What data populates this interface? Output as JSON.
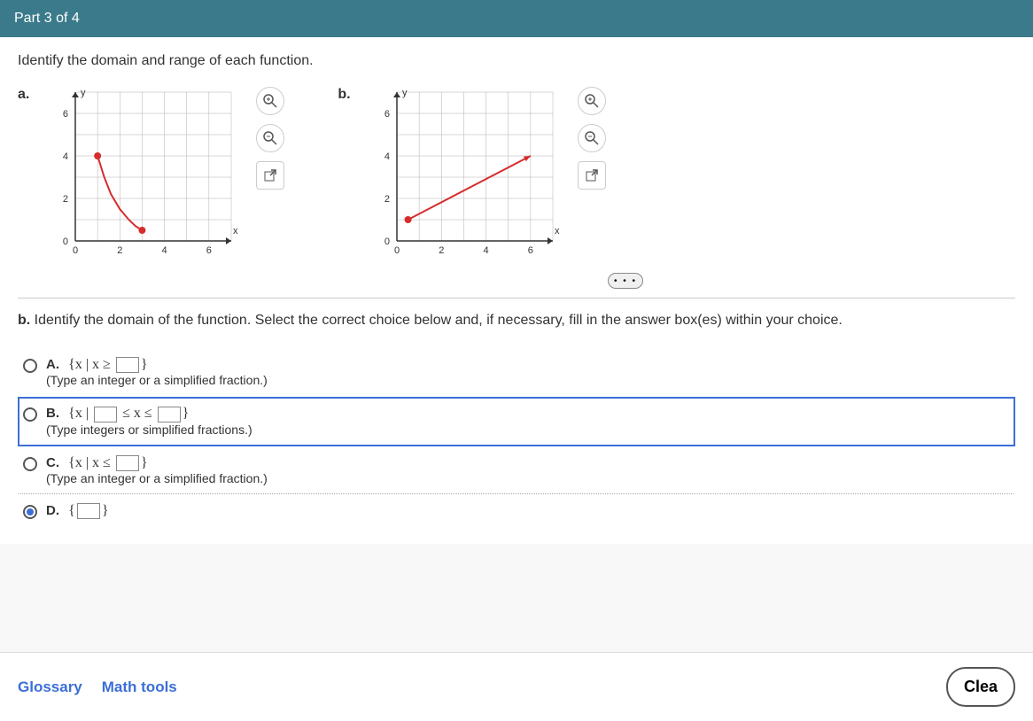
{
  "header": {
    "title": "Part 3 of 4"
  },
  "prompt": "Identify the domain and range of each function.",
  "chart_a": {
    "label": "a.",
    "xlim": [
      0,
      7
    ],
    "ylim": [
      0,
      7
    ],
    "xticks": [
      0,
      2,
      4,
      6
    ],
    "yticks": [
      0,
      2,
      4,
      6
    ],
    "xlabel": "x",
    "ylabel": "y",
    "grid_color": "#b0b0b0",
    "axis_color": "#333",
    "curve_color": "#d62c2c",
    "point_fill": "#d62c2c",
    "points_closed": [
      [
        1,
        4
      ],
      [
        3,
        0.5
      ]
    ],
    "curve": [
      [
        1,
        4
      ],
      [
        1.3,
        3
      ],
      [
        1.6,
        2.2
      ],
      [
        2,
        1.5
      ],
      [
        2.4,
        1
      ],
      [
        2.7,
        0.7
      ],
      [
        3,
        0.5
      ]
    ]
  },
  "chart_b": {
    "label": "b.",
    "xlim": [
      0,
      7
    ],
    "ylim": [
      0,
      7
    ],
    "xticks": [
      0,
      2,
      4,
      6
    ],
    "yticks": [
      0,
      2,
      4,
      6
    ],
    "xlabel": "x",
    "ylabel": "y",
    "grid_color": "#b0b0b0",
    "axis_color": "#333",
    "line_color": "#d62c2c",
    "point_fill": "#d62c2c",
    "line": [
      [
        0.5,
        1
      ],
      [
        6,
        4
      ]
    ],
    "start_closed": true,
    "end_arrow": true
  },
  "tools": {
    "zoom_in": "zoom-in-icon",
    "zoom_out": "zoom-out-icon",
    "popout": "popout-icon"
  },
  "more": "• • •",
  "question_label": "b.",
  "question_text": "Identify the domain of the function. Select the correct choice below and, if necessary, fill in the answer box(es) within your choice.",
  "choices": {
    "A": {
      "letter": "A.",
      "pre": "{x | x ≥ ",
      "post": "}",
      "hint": "(Type an integer or a simplified fraction.)"
    },
    "B": {
      "letter": "B.",
      "pre": "{x | ",
      "mid": " ≤ x ≤ ",
      "post": "}",
      "hint": "(Type integers or simplified fractions.)"
    },
    "C": {
      "letter": "C.",
      "pre": "{x | x ≤ ",
      "post": "}",
      "hint": "(Type an integer or a simplified fraction.)"
    },
    "D": {
      "letter": "D.",
      "pre": "{",
      "post": "}"
    }
  },
  "selected_choice": "D",
  "highlighted_choice": "B",
  "footer": {
    "glossary": "Glossary",
    "math_tools": "Math tools",
    "clear": "Clea"
  }
}
